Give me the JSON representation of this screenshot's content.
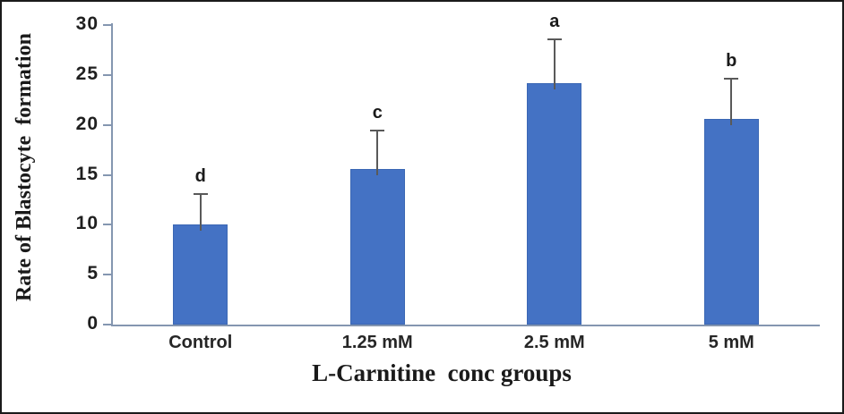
{
  "figure": {
    "background": "#ffffff",
    "border_color": "#1a1a1a"
  },
  "chart_data": {
    "type": "bar",
    "title": "",
    "xlabel": "L-Carnitine  conc groups",
    "ylabel": "Rate of Blastocyte  formation",
    "categories": [
      "Control",
      "1.25 mM",
      "2.5 mM",
      "5 mM"
    ],
    "values": [
      10,
      15.6,
      24.2,
      20.6
    ],
    "error_up": [
      3.1,
      3.8,
      4.4,
      4.0
    ],
    "sig_letters": [
      "d",
      "c",
      "a",
      "b"
    ],
    "yticks": [
      0,
      5,
      10,
      15,
      20,
      25,
      30
    ],
    "ylim": [
      0,
      30
    ],
    "grid": "off",
    "legend": "none",
    "bar_color": "#4472C4",
    "bar_border_color": "#3b67b4",
    "axis_color": "#8496B0",
    "error_bar_color": "#595959",
    "text_color": "#1a1a1a"
  }
}
